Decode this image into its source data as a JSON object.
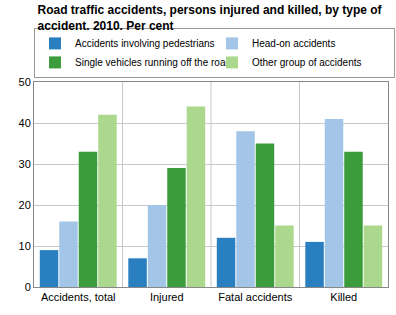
{
  "chart_data": {
    "type": "bar",
    "title": "Road traffic accidents, persons injured and killed, by type of accident. 2010. Per cent",
    "categories": [
      "Accidents, total",
      "Injured",
      "Fatal accidents",
      "Killed"
    ],
    "series": [
      {
        "name": "Accidents involving pedestrians",
        "color": "#2a7fc0",
        "values": [
          9,
          7,
          12,
          11
        ]
      },
      {
        "name": "Head-on accidents",
        "color": "#a3c6e8",
        "values": [
          16,
          20,
          38,
          41
        ]
      },
      {
        "name": "Single vehicles running off the road",
        "color": "#3c9c3c",
        "values": [
          33,
          29,
          35,
          33
        ]
      },
      {
        "name": "Other group of accidents",
        "color": "#acd88e",
        "values": [
          42,
          44,
          15,
          15
        ]
      }
    ],
    "ylim": [
      0,
      50
    ],
    "yticks": [
      0,
      10,
      20,
      30,
      40,
      50
    ],
    "grid": true,
    "legend": "top"
  }
}
